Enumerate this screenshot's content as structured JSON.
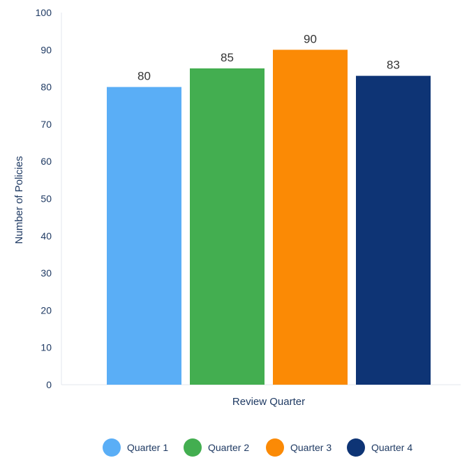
{
  "chart_data": {
    "type": "bar",
    "title": "",
    "xlabel": "Review Quarter",
    "ylabel": "Number of Policies",
    "ylim": [
      0,
      100
    ],
    "yticks": [
      0,
      10,
      20,
      30,
      40,
      50,
      60,
      70,
      80,
      90,
      100
    ],
    "categories": [
      "Quarter 1",
      "Quarter 2",
      "Quarter 3",
      "Quarter 4"
    ],
    "values": [
      80,
      85,
      90,
      83
    ],
    "colors": [
      "#5aaef6",
      "#43ae50",
      "#fb8a05",
      "#0e3475"
    ],
    "data_labels": [
      "80",
      "85",
      "90",
      "83"
    ],
    "grid": false,
    "legend": {
      "position": "bottom",
      "entries": [
        "Quarter 1",
        "Quarter 2",
        "Quarter 3",
        "Quarter 4"
      ]
    }
  }
}
